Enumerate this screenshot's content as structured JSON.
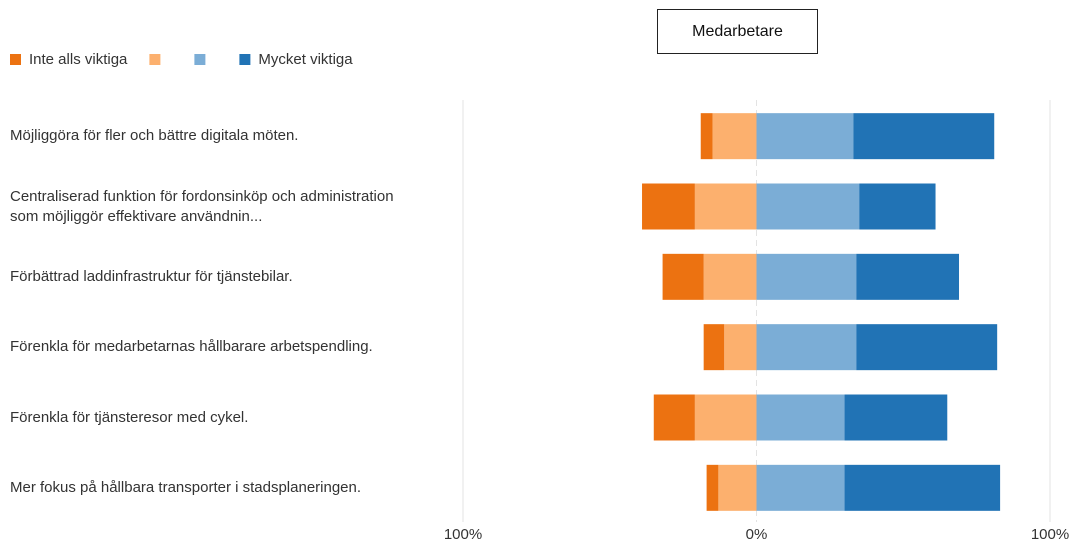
{
  "chart_data": {
    "type": "diverging-bar",
    "title": "Medarbetare",
    "categories": [
      "Möjliggöra för fler och bättre digitala möten.",
      "Centraliserad funktion för fordonsinköp och administration som möjliggör effektivare användnin...",
      "Förbättrad laddinfrastruktur för tjänstebilar.",
      "Förenkla för medarbetarnas hållbarare arbetspendling.",
      "Förenkla för tjänsteresor med cykel.",
      "Mer fokus på hållbara transporter i stadsplaneringen."
    ],
    "series": [
      {
        "name": "Inte alls viktiga",
        "color": "#ec7211",
        "values": [
          -4,
          -18,
          -14,
          -7,
          -14,
          -4
        ]
      },
      {
        "name": null,
        "color": "#fcb06e",
        "values": [
          -15,
          -21,
          -18,
          -11,
          -21,
          -13
        ]
      },
      {
        "name": null,
        "color": "#7badd6",
        "values": [
          33,
          35,
          34,
          34,
          30,
          30
        ]
      },
      {
        "name": "Mycket viktiga",
        "color": "#2173b5",
        "values": [
          48,
          26,
          35,
          48,
          35,
          53
        ]
      }
    ],
    "xlim": [
      -100,
      100
    ],
    "xticks": [
      {
        "value": -100,
        "label": "100%"
      },
      {
        "value": 0,
        "label": "0%"
      },
      {
        "value": 100,
        "label": "100%"
      }
    ],
    "grid": true,
    "legend": "top-left"
  }
}
